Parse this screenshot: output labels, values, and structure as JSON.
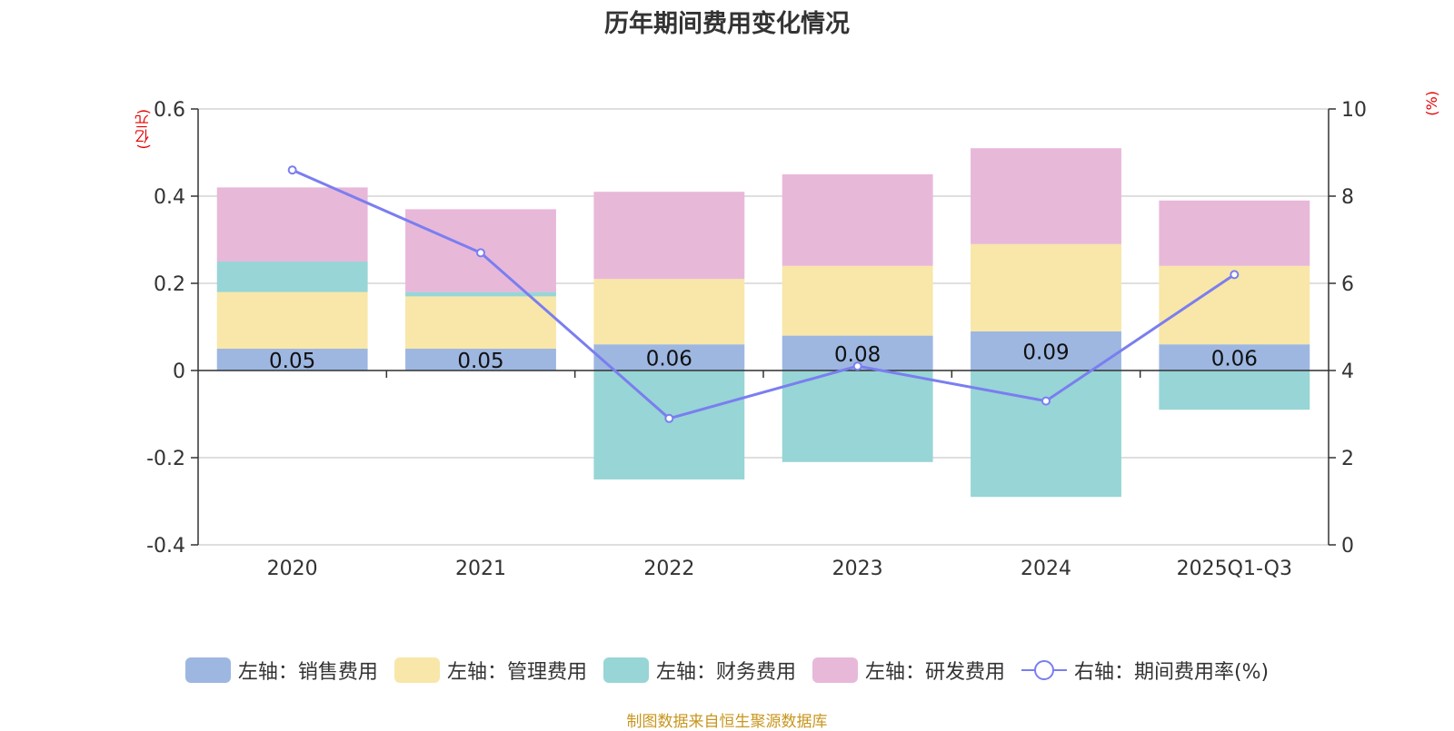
{
  "chart_data": {
    "type": "bar",
    "title": "历年期间费用变化情况",
    "categories": [
      "2020",
      "2021",
      "2022",
      "2023",
      "2024",
      "2025Q1-Q3"
    ],
    "left_axis": {
      "unit_label": "(亿元)",
      "ylim": [
        -0.4,
        0.6
      ],
      "ticks": [
        -0.4,
        -0.2,
        0,
        0.2,
        0.4,
        0.6
      ],
      "tick_labels": [
        "-0.4",
        "-0.2",
        "0",
        "0.2",
        "0.4",
        "0.6"
      ]
    },
    "right_axis": {
      "unit_label": "(%)",
      "ylim": [
        0,
        10
      ],
      "ticks": [
        0,
        2,
        4,
        6,
        8,
        10
      ],
      "tick_labels": [
        "0",
        "2",
        "4",
        "6",
        "8",
        "10"
      ]
    },
    "series": [
      {
        "name": "左轴：销售费用",
        "axis": "left",
        "kind": "bar",
        "color": "#9db7e1",
        "values": [
          0.05,
          0.05,
          0.06,
          0.08,
          0.09,
          0.06
        ],
        "labels": [
          "0.05",
          "0.05",
          "0.06",
          "0.08",
          "0.09",
          "0.06"
        ]
      },
      {
        "name": "左轴：管理费用",
        "axis": "left",
        "kind": "bar",
        "color": "#f8e7a8",
        "values": [
          0.13,
          0.12,
          0.15,
          0.16,
          0.2,
          0.18
        ]
      },
      {
        "name": "左轴：财务费用",
        "axis": "left",
        "kind": "bar",
        "color": "#98d5d6",
        "values": [
          0.07,
          0.01,
          -0.25,
          -0.21,
          -0.29,
          -0.09
        ]
      },
      {
        "name": "左轴：研发费用",
        "axis": "left",
        "kind": "bar",
        "color": "#e8b8d9",
        "values": [
          0.17,
          0.19,
          0.2,
          0.21,
          0.22,
          0.15
        ]
      },
      {
        "name": "右轴：期间费用率(%)",
        "axis": "right",
        "kind": "line",
        "color": "#7a7ef0",
        "values": [
          8.6,
          6.7,
          2.9,
          4.1,
          3.3,
          6.2
        ]
      }
    ],
    "legend_position": "bottom",
    "grid": true
  },
  "source": "制图数据来自恒生聚源数据库"
}
